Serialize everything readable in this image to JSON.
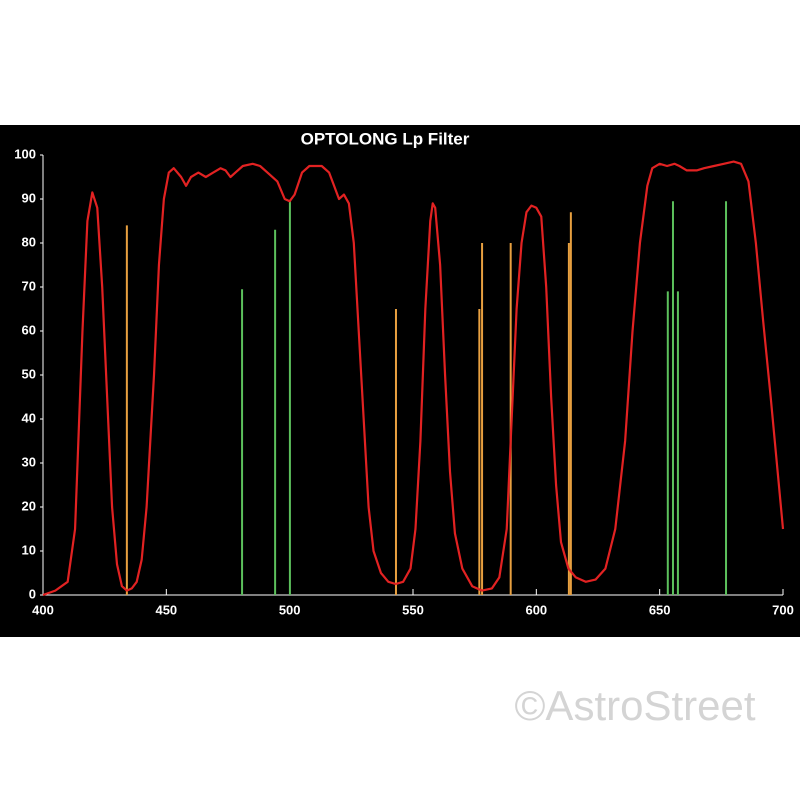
{
  "chart_data": {
    "type": "line",
    "title": "OPTOLONG Lp Filter",
    "watermark": "©AstroStreet",
    "xlim": [
      400,
      700
    ],
    "xticks": [
      400,
      450,
      500,
      550,
      600,
      650,
      700
    ],
    "ylim": [
      0,
      100
    ],
    "yticks": [
      0,
      10,
      20,
      30,
      40,
      50,
      60,
      70,
      80,
      90,
      100
    ],
    "series": [
      {
        "color": "#e22222",
        "x": [
          400,
          405,
          410,
          413,
          416,
          418,
          420,
          422,
          424,
          426,
          428,
          430,
          432,
          434,
          436,
          438,
          440,
          442,
          445,
          447,
          449,
          451,
          453,
          456,
          458,
          460,
          463,
          466,
          469,
          472,
          474,
          476,
          478,
          481,
          485,
          488,
          491,
          495,
          498,
          500,
          502,
          505,
          508,
          513,
          516,
          518,
          520,
          522,
          524,
          526,
          528,
          530,
          532,
          534,
          537,
          540,
          543,
          546,
          549,
          551,
          553,
          555,
          557,
          558,
          559,
          561,
          563,
          565,
          567,
          570,
          574,
          578,
          582,
          585,
          588,
          590,
          592,
          594,
          596,
          598,
          600,
          602,
          604,
          606,
          608,
          610,
          613,
          616,
          620,
          624,
          628,
          632,
          636,
          639,
          642,
          645,
          647,
          650,
          653,
          656,
          658,
          661,
          665,
          668,
          672,
          676,
          680,
          683,
          686,
          689,
          692,
          695,
          697,
          700
        ],
        "values": [
          0,
          1,
          3,
          15,
          60,
          85,
          91.5,
          88,
          70,
          45,
          20,
          7,
          2,
          1,
          1.5,
          3,
          8,
          20,
          50,
          75,
          90,
          96,
          97,
          95,
          93,
          95,
          96,
          95,
          96,
          97,
          96.5,
          95,
          96,
          97.5,
          98,
          97.5,
          96,
          94,
          90,
          89.5,
          91,
          96,
          97.5,
          97.5,
          96,
          93,
          90,
          91,
          89,
          80,
          60,
          40,
          20,
          10,
          5,
          3,
          2.5,
          3,
          6,
          15,
          35,
          65,
          85,
          89,
          88,
          75,
          50,
          28,
          14,
          6,
          2,
          1,
          1.5,
          4,
          15,
          40,
          65,
          80,
          87,
          88.5,
          88,
          86,
          70,
          45,
          25,
          12,
          6,
          4,
          3,
          3.5,
          6,
          15,
          35,
          60,
          80,
          93,
          97,
          98,
          97.5,
          98,
          97.5,
          96.5,
          96.5,
          97,
          97.5,
          98,
          98.5,
          98,
          94,
          80,
          62,
          45,
          33,
          15
        ]
      }
    ],
    "emission_lines": [
      {
        "color": "#e8a040",
        "x": [
          434.0,
          543.1,
          576.9,
          578.0,
          589.6,
          613.2,
          614.0
        ],
        "values": [
          84,
          65,
          65,
          80,
          80,
          80,
          87
        ]
      },
      {
        "color": "#5cc05c",
        "x": [
          480.7,
          494.1,
          500.1,
          653.3,
          655.4,
          657.4,
          676.9
        ],
        "values": [
          69.5,
          83,
          89.5,
          69,
          89.5,
          69,
          89.5
        ]
      }
    ]
  }
}
